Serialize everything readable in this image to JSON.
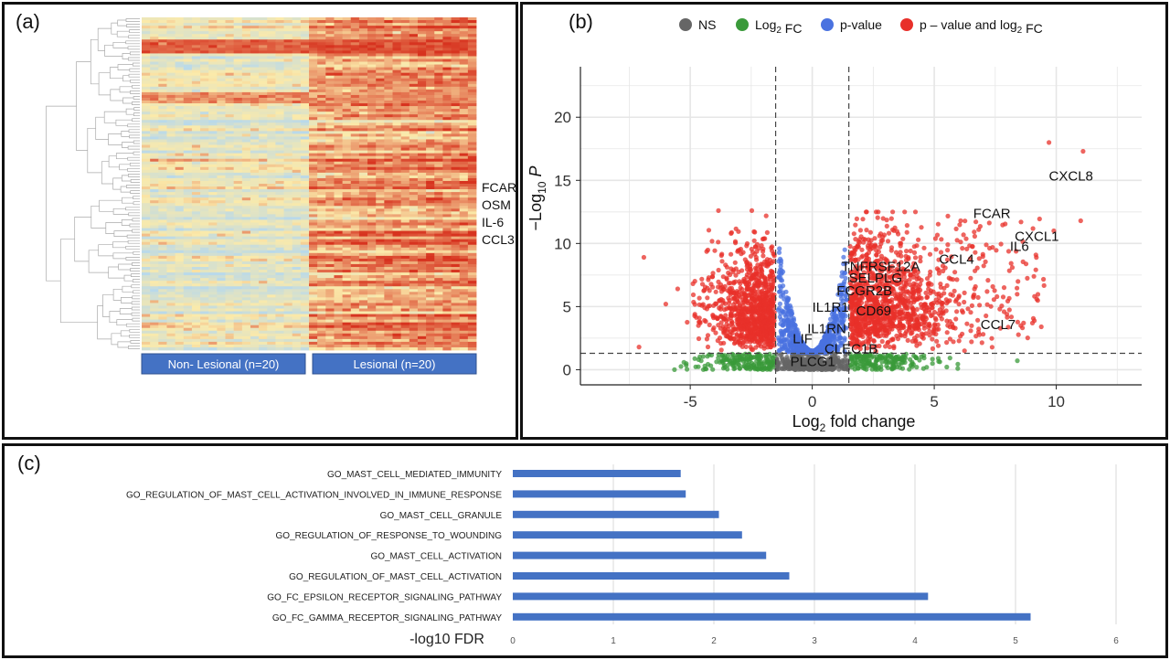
{
  "panels": {
    "a": "(a)",
    "b": "(b)",
    "c": "(c)"
  },
  "heatmap": {
    "groups": [
      {
        "label": "Non- Lesional (n=20)",
        "n": 20
      },
      {
        "label": "Lesional (n=20)",
        "n": 20
      }
    ],
    "gene_labels": [
      "FCAR",
      "OSM",
      "IL-6",
      "CCL3"
    ],
    "colors": {
      "low": "#b9d9ea",
      "mid": "#fbeaaa",
      "high": "#d7331f",
      "group_bar": "#4472c4"
    }
  },
  "volcano": {
    "legend": [
      "NS",
      "Log2 FC",
      "p-value",
      "p – value and log2 FC"
    ],
    "legend_colors": [
      "#666666",
      "#3a9a3a",
      "#4a72e0",
      "#e8302a"
    ],
    "xlabel": "Log2 fold change",
    "ylabel": "−Log10 P",
    "xlim": [
      -9.5,
      13.5
    ],
    "ylim": [
      -1.2,
      24
    ],
    "xticks": [
      -5,
      0,
      5,
      10
    ],
    "yticks": [
      0,
      5,
      10,
      15,
      20
    ],
    "fc_cutoff": 1.5,
    "p_cutoff": 1.3,
    "genes": [
      {
        "name": "CXCL8",
        "x": 9.7,
        "y": 15.0
      },
      {
        "name": "FCAR",
        "x": 6.6,
        "y": 12.0
      },
      {
        "name": "CXCL1",
        "x": 8.3,
        "y": 10.2
      },
      {
        "name": "IL6",
        "x": 8.1,
        "y": 9.4
      },
      {
        "name": "CCL4",
        "x": 5.2,
        "y": 8.4
      },
      {
        "name": "TNFRSF12A",
        "x": 1.2,
        "y": 7.8
      },
      {
        "name": "SELPLG",
        "x": 1.5,
        "y": 6.9
      },
      {
        "name": "FCGR2B",
        "x": 1.0,
        "y": 5.9
      },
      {
        "name": "IL1R1",
        "x": 0.0,
        "y": 4.6
      },
      {
        "name": "CD69",
        "x": 1.8,
        "y": 4.3
      },
      {
        "name": "CCL7",
        "x": 6.9,
        "y": 3.2
      },
      {
        "name": "IL1RN",
        "x": -0.2,
        "y": 2.9
      },
      {
        "name": "LIF",
        "x": -0.8,
        "y": 2.1
      },
      {
        "name": "CLEC1B",
        "x": 0.5,
        "y": 1.3
      },
      {
        "name": "PLCG1",
        "x": -0.9,
        "y": 0.3
      }
    ]
  },
  "chart_data": [
    {
      "type": "scatter",
      "xlabel": "Log2 fold change",
      "ylabel": "−Log10 P",
      "xlim": [
        -9.5,
        13.5
      ],
      "ylim": [
        -1.2,
        24
      ],
      "legend": [
        "NS",
        "Log2 FC",
        "p-value",
        "p – value and log2 FC"
      ],
      "labeled_points": [
        {
          "gene": "CXCL8",
          "x": 9.7,
          "y": 15.0
        },
        {
          "gene": "FCAR",
          "x": 6.6,
          "y": 12.0
        },
        {
          "gene": "CXCL1",
          "x": 8.3,
          "y": 10.2
        },
        {
          "gene": "IL6",
          "x": 8.1,
          "y": 9.4
        },
        {
          "gene": "CCL4",
          "x": 5.2,
          "y": 8.4
        },
        {
          "gene": "TNFRSF12A",
          "x": 1.2,
          "y": 7.8
        },
        {
          "gene": "SELPLG",
          "x": 1.5,
          "y": 6.9
        },
        {
          "gene": "FCGR2B",
          "x": 1.0,
          "y": 5.9
        },
        {
          "gene": "IL1R1",
          "x": 0.0,
          "y": 4.6
        },
        {
          "gene": "CD69",
          "x": 1.8,
          "y": 4.3
        },
        {
          "gene": "CCL7",
          "x": 6.9,
          "y": 3.2
        },
        {
          "gene": "IL1RN",
          "x": -0.2,
          "y": 2.9
        },
        {
          "gene": "LIF",
          "x": -0.8,
          "y": 2.1
        },
        {
          "gene": "CLEC1B",
          "x": 0.5,
          "y": 1.3
        },
        {
          "gene": "PLCG1",
          "x": -0.9,
          "y": 0.3
        }
      ]
    },
    {
      "type": "bar",
      "orientation": "horizontal",
      "categories": [
        "GO_MAST_CELL_MEDIATED_IMMUNITY",
        "GO_REGULATION_OF_MAST_CELL_ACTIVATION_INVOLVED_IN_IMMUNE_RESPONSE",
        "GO_MAST_CELL_GRANULE",
        "GO_REGULATION_OF_RESPONSE_TO_WOUNDING",
        "GO_MAST_CELL_ACTIVATION",
        "GO_REGULATION_OF_MAST_CELL_ACTIVATION",
        "GO_FC_EPSILON_RECEPTOR_SIGNALING_PATHWAY",
        "GO_FC_GAMMA_RECEPTOR_SIGNALING_PATHWAY"
      ],
      "values": [
        1.67,
        1.72,
        2.05,
        2.28,
        2.52,
        2.75,
        4.13,
        5.15
      ],
      "xlabel": "-log10 FDR",
      "xlim": [
        0,
        6
      ],
      "xticks": [
        0,
        1,
        2,
        3,
        4,
        5,
        6
      ],
      "bar_color": "#4472c4"
    }
  ]
}
